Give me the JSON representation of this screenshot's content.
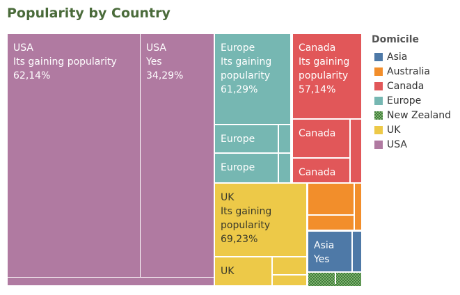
{
  "chart_data": {
    "type": "treemap",
    "title": "Popularity by Country",
    "legend": {
      "title": "Domicile",
      "placement": "right",
      "entries": [
        {
          "name": "Asia",
          "color": "#4e79a7"
        },
        {
          "name": "Australia",
          "color": "#f28e2b"
        },
        {
          "name": "Canada",
          "color": "#e15759"
        },
        {
          "name": "Europe",
          "color": "#76b7b2"
        },
        {
          "name": "New Zealand",
          "color": "#59a14f",
          "pattern": "checkered"
        },
        {
          "name": "UK",
          "color": "#edc948"
        },
        {
          "name": "USA",
          "color": "#b07aa1"
        }
      ]
    },
    "tiles": [
      {
        "domicile": "USA",
        "answer": "Its gaining popularity",
        "percent": "62,14%",
        "label": [
          "USA",
          "Its gaining popularity",
          "62,14%"
        ]
      },
      {
        "domicile": "USA",
        "answer": "Yes",
        "percent": "34,29%",
        "label": [
          "USA",
          "Yes",
          "34,29%"
        ]
      },
      {
        "domicile": "USA",
        "label": []
      },
      {
        "domicile": "Europe",
        "answer": "Its gaining popularity",
        "percent": "61,29%",
        "label": [
          "Europe",
          "Its gaining",
          "popularity",
          "61,29%"
        ]
      },
      {
        "domicile": "Europe",
        "label": [
          "Europe"
        ]
      },
      {
        "domicile": "Europe",
        "label": [
          "Europe"
        ]
      },
      {
        "domicile": "Europe",
        "label": []
      },
      {
        "domicile": "Europe",
        "label": []
      },
      {
        "domicile": "Canada",
        "answer": "Its gaining popularity",
        "percent": "57,14%",
        "label": [
          "Canada",
          "Its gaining",
          "popularity",
          "57,14%"
        ]
      },
      {
        "domicile": "Canada",
        "label": [
          "Canada"
        ]
      },
      {
        "domicile": "Canada",
        "label": [
          "Canada"
        ]
      },
      {
        "domicile": "Canada",
        "label": []
      },
      {
        "domicile": "UK",
        "answer": "Its gaining popularity",
        "percent": "69,23%",
        "label": [
          "UK",
          "Its gaining",
          "popularity",
          "69,23%"
        ]
      },
      {
        "domicile": "UK",
        "label": [
          "UK"
        ]
      },
      {
        "domicile": "UK",
        "label": []
      },
      {
        "domicile": "UK",
        "label": []
      },
      {
        "domicile": "Australia",
        "label": []
      },
      {
        "domicile": "Australia",
        "label": []
      },
      {
        "domicile": "Australia",
        "label": []
      },
      {
        "domicile": "Asia",
        "answer": "Yes",
        "label": [
          "Asia",
          "Yes"
        ]
      },
      {
        "domicile": "Asia",
        "label": []
      },
      {
        "domicile": "New Zealand",
        "label": []
      },
      {
        "domicile": "New Zealand",
        "label": []
      },
      {
        "domicile": "New Zealand",
        "label": []
      }
    ]
  }
}
